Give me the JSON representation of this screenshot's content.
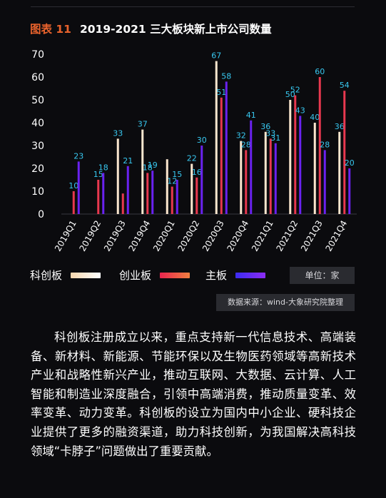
{
  "header": {
    "figure_label": "图表 11",
    "title": "2019-2021 三大板块新上市公司数量"
  },
  "chart_data": {
    "type": "bar",
    "title": "2019-2021 三大板块新上市公司数量",
    "categories": [
      "2019Q1",
      "2019Q2",
      "2019Q3",
      "2019Q4",
      "2020Q1",
      "2020Q2",
      "2020Q3",
      "2020Q4",
      "2021Q1",
      "2021Q2",
      "2021Q3",
      "2021Q4"
    ],
    "yticks": [
      "0",
      "10",
      "20",
      "30",
      "40",
      "50",
      "60",
      "70"
    ],
    "ylim": [
      0,
      70
    ],
    "grid": false,
    "series": [
      {
        "name": "科创板",
        "color": "#fbe7cf",
        "values": [
          0,
          0,
          33,
          37,
          24,
          22,
          67,
          32,
          36,
          50,
          40,
          36
        ],
        "labels": [
          "",
          "",
          "33",
          "37",
          "",
          "22",
          "67",
          "32",
          "36",
          "50",
          "40",
          "36"
        ]
      },
      {
        "name": "创业板",
        "color": "#e8384f",
        "values": [
          10,
          15,
          9,
          18,
          12,
          16,
          51,
          28,
          33,
          52,
          60,
          54
        ],
        "labels": [
          "10",
          "15",
          "",
          "18",
          "12",
          "16",
          "51",
          "28",
          "33",
          "52",
          "60",
          "54"
        ]
      },
      {
        "name": "主板",
        "color": "#6a22f0",
        "values": [
          23,
          18,
          21,
          19,
          15,
          30,
          58,
          41,
          31,
          43,
          28,
          20
        ],
        "labels": [
          "23",
          "18",
          "21",
          "19",
          "15",
          "30",
          "58",
          "41",
          "31",
          "43",
          "28",
          "20"
        ]
      }
    ],
    "label_color": "#38c8f0",
    "legend_position": "bottom"
  },
  "legend": {
    "items": [
      {
        "label": "科创板",
        "gradient": [
          "#f7d7ae",
          "#ffffff"
        ]
      },
      {
        "label": "创业板",
        "gradient": [
          "#e8244e",
          "#f08040"
        ]
      },
      {
        "label": "主板",
        "gradient": [
          "#3b2cf0",
          "#8c2cf4"
        ]
      }
    ]
  },
  "unit_note": "单位：家",
  "source_note": "数据来源：wind-大象研究院整理",
  "body_paragraph": "科创板注册成立以来，重点支持新一代信息技术、高端装备、新材料、新能源、节能环保以及生物医药领域等高新技术产业和战略性新兴产业，推动互联网、大数据、云计算、人工智能和制造业深度融合，引领中高端消费，推动质量变革、效率变革、动力变革。科创板的设立为国内中小企业、硬科技企业提供了更多的融资渠道，助力科技创新，为我国解决高科技领域“卡脖子”问题做出了重要贡献。"
}
